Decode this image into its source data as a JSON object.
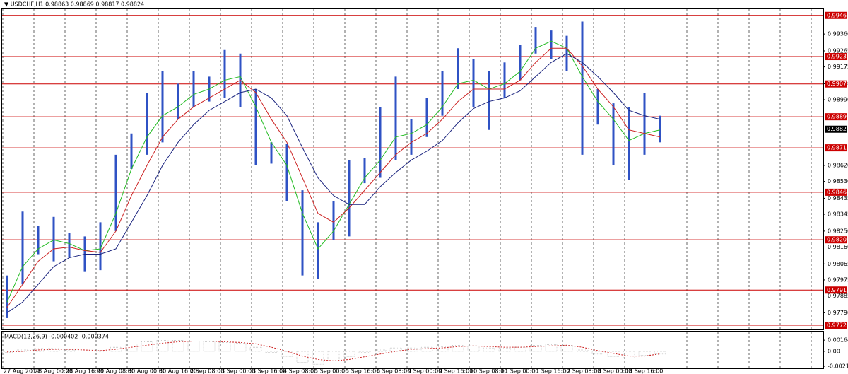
{
  "chart_data": {
    "type": "ohlc",
    "title": "▼ USDCHF,H1  0.98863 0.98869 0.98817 0.98824",
    "categories": [
      "27 Aug 2019",
      null,
      "28 Aug 00:00",
      null,
      "28 Aug 16:00",
      null,
      "29 Aug 08:00",
      null,
      "30 Aug 00:00",
      null,
      "30 Aug 16:00",
      null,
      "2 Sep 08:00",
      null,
      "3 Sep 00:00",
      null,
      "3 Sep 16:00",
      null,
      "4 Sep 08:00",
      null,
      "5 Sep 00:00",
      null,
      "5 Sep 16:00",
      null,
      "6 Sep 08:00",
      null,
      "9 Sep 00:00",
      null,
      "9 Sep 16:00",
      null,
      "10 Sep 08:00",
      null,
      "11 Sep 00:00",
      null,
      "11 Sep 16:00",
      null,
      "12 Sep 08:00",
      null,
      "13 Sep 00:00",
      null,
      "13 Sep 16:00",
      null,
      null
    ],
    "lows": [
      0.9776,
      0.9795,
      0.9812,
      0.9808,
      0.981,
      0.9802,
      0.9803,
      0.9825,
      0.986,
      0.9868,
      0.9875,
      0.9888,
      0.9895,
      0.9898,
      0.99,
      0.9895,
      0.9862,
      0.9863,
      0.9842,
      0.98,
      0.9798,
      0.982,
      0.9822,
      0.9852,
      0.9855,
      0.9865,
      0.9868,
      0.9878,
      0.989,
      0.9905,
      0.9895,
      0.9882,
      0.99,
      0.991,
      0.9925,
      0.9922,
      0.9915,
      0.9868,
      0.9885,
      0.9862,
      0.9854,
      0.9868,
      0.9875
    ],
    "highs": [
      0.98,
      0.9836,
      0.9828,
      0.9833,
      0.9824,
      0.9822,
      0.983,
      0.9868,
      0.988,
      0.9903,
      0.9915,
      0.9908,
      0.9915,
      0.9912,
      0.9927,
      0.9925,
      0.9905,
      0.9875,
      0.9874,
      0.9848,
      0.983,
      0.9842,
      0.9865,
      0.9866,
      0.9895,
      0.9912,
      0.9888,
      0.99,
      0.9915,
      0.9928,
      0.9922,
      0.9915,
      0.992,
      0.993,
      0.994,
      0.9938,
      0.9935,
      0.9943,
      0.9905,
      0.9897,
      0.9895,
      0.9903,
      0.989
    ],
    "color": "#2f52c4",
    "series": [
      {
        "color": "#22bb22",
        "values": [
          0.9785,
          0.9805,
          0.9815,
          0.982,
          0.9818,
          0.9814,
          0.9815,
          0.9835,
          0.986,
          0.9878,
          0.989,
          0.9895,
          0.9902,
          0.9905,
          0.991,
          0.9912,
          0.9895,
          0.9875,
          0.9862,
          0.9835,
          0.9815,
          0.9825,
          0.984,
          0.9855,
          0.9865,
          0.9878,
          0.988,
          0.9885,
          0.9895,
          0.9908,
          0.991,
          0.9905,
          0.9908,
          0.9915,
          0.9928,
          0.9932,
          0.9928,
          0.9912,
          0.9898,
          0.9888,
          0.9876,
          0.988,
          0.9882
        ]
      },
      {
        "color": "#cc2222",
        "values": [
          0.9782,
          0.9795,
          0.9808,
          0.9815,
          0.9816,
          0.9814,
          0.9813,
          0.9825,
          0.9845,
          0.9862,
          0.9878,
          0.9888,
          0.9895,
          0.99,
          0.9905,
          0.991,
          0.9903,
          0.9888,
          0.9875,
          0.9855,
          0.9835,
          0.983,
          0.9838,
          0.9848,
          0.9858,
          0.9868,
          0.9875,
          0.988,
          0.9888,
          0.9898,
          0.9905,
          0.9905,
          0.9905,
          0.991,
          0.992,
          0.9928,
          0.9928,
          0.9918,
          0.9905,
          0.9895,
          0.9882,
          0.988,
          0.9878
        ]
      },
      {
        "color": "#1a237e",
        "values": [
          0.9779,
          0.9785,
          0.9795,
          0.9805,
          0.981,
          0.9812,
          0.9812,
          0.9815,
          0.983,
          0.9845,
          0.9862,
          0.9875,
          0.9885,
          0.9893,
          0.9898,
          0.9903,
          0.9905,
          0.99,
          0.989,
          0.9872,
          0.9855,
          0.9845,
          0.984,
          0.984,
          0.985,
          0.9858,
          0.9865,
          0.987,
          0.9876,
          0.9886,
          0.9894,
          0.9898,
          0.99,
          0.9904,
          0.9912,
          0.992,
          0.9925,
          0.992,
          0.9912,
          0.9903,
          0.9893,
          0.989,
          0.9888
        ]
      }
    ],
    "ylim": [
      0.977,
      0.9948
    ],
    "yticks": [
      {
        "value": 0.9936,
        "label": "0.99360"
      },
      0.99265,
      0.99175,
      {
        "value": 0.9908,
        "label": "0.99080"
      },
      {
        "value": 0.9899,
        "label": "0.98990"
      },
      {
        "value": 0.9862,
        "label": "0.98620"
      },
      {
        "value": 0.9853,
        "label": "0.98530"
      },
      0.98435,
      0.98345,
      {
        "value": 0.9825,
        "label": "0.98250"
      },
      {
        "value": 0.9816,
        "label": "0.98160"
      },
      0.98065,
      0.97975,
      0.97885,
      {
        "value": 0.9779,
        "label": "0.97790"
      }
    ],
    "levels": {
      "color": "#cc0000",
      "values": [
        0.99465,
        0.99233,
        0.99079,
        0.98894,
        0.98719,
        0.98469,
        0.98201,
        0.97918,
        0.9772
      ],
      "value_labels": [
        "0.99465",
        "0.99233",
        "0.99079",
        "0.98894",
        "0.98719",
        "0.98469",
        "0.98201",
        "0.97918",
        "0.97720"
      ]
    },
    "current_price": 0.98824,
    "macd": {
      "label": "MACD(12,26,9) -0.000402 -0.000374",
      "histogram": [
        -0.0002,
        0.0002,
        0.0004,
        0.0004,
        0.0002,
        0.0,
        0.0001,
        0.0006,
        0.0011,
        0.0014,
        0.0016,
        0.0016,
        0.0015,
        0.0014,
        0.0013,
        0.0012,
        0.0006,
        -0.0002,
        -0.0008,
        -0.0016,
        -0.0019,
        -0.0014,
        -0.0008,
        -0.0002,
        0.0002,
        0.0005,
        0.0005,
        0.0006,
        0.0007,
        0.0009,
        0.0008,
        0.0005,
        0.0005,
        0.0006,
        0.0009,
        0.001,
        0.0009,
        0.0002,
        -0.0004,
        -0.0008,
        -0.001,
        -0.0006,
        -0.000402
      ],
      "signal": [
        -0.0001,
        0.0,
        0.0002,
        0.0003,
        0.0003,
        0.0002,
        0.0001,
        0.0003,
        0.0006,
        0.0009,
        0.0012,
        0.0014,
        0.0015,
        0.0015,
        0.0014,
        0.0013,
        0.0011,
        0.0006,
        0.0,
        -0.0007,
        -0.0012,
        -0.0014,
        -0.0012,
        -0.0008,
        -0.0004,
        0.0,
        0.0003,
        0.0004,
        0.0005,
        0.0007,
        0.0008,
        0.0007,
        0.0006,
        0.0006,
        0.0007,
        0.0008,
        0.0009,
        0.0006,
        0.0001,
        -0.0003,
        -0.0007,
        -0.0007,
        -0.000374
      ],
      "signal_color": "#cc2222",
      "histogram_color": "#b0b0b0",
      "ylim": [
        -0.0024,
        0.0028
      ],
      "yticks": [
        0.001642,
        {
          "value": 0,
          "label": "0.00"
        },
        -0.002194
      ]
    }
  }
}
